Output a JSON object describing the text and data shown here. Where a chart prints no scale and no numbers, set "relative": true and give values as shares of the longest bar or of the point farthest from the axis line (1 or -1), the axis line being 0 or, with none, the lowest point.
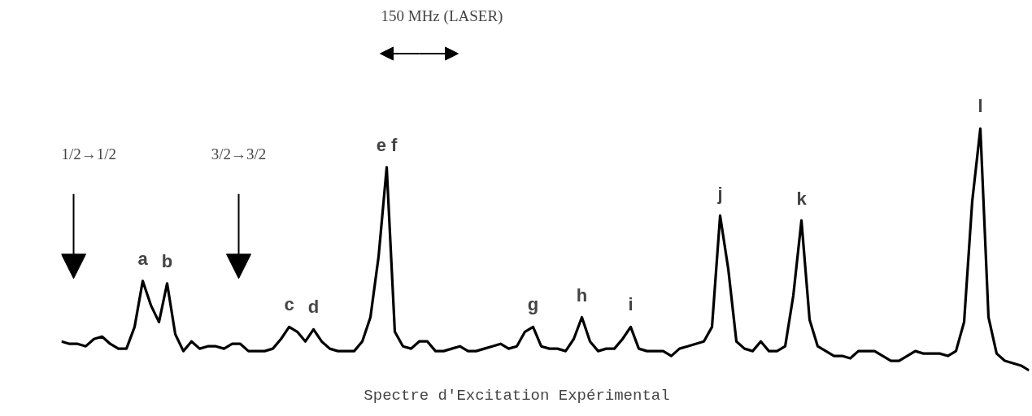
{
  "chart_data": {
    "type": "line",
    "relative": true,
    "xlabel": "Spectre d'Excitation Expérimental",
    "annotations": [
      "150 MHz (LASER)",
      "1/2→1/2",
      "3/2→3/2",
      "a",
      "b",
      "c",
      "d",
      "e f",
      "g",
      "h",
      "i",
      "j",
      "k",
      "l"
    ],
    "categories": [
      null,
      null,
      null,
      null,
      null,
      null,
      null,
      null,
      null,
      null,
      null,
      null,
      null,
      null,
      null,
      null,
      null,
      null,
      null,
      null,
      null,
      null,
      null,
      null,
      null,
      null,
      null,
      null,
      null,
      null,
      null,
      null,
      null,
      null,
      null,
      null,
      null,
      null,
      null,
      null,
      null,
      null,
      null,
      null,
      null,
      null,
      null,
      null,
      null,
      null,
      null,
      null,
      null,
      null,
      null,
      null,
      null,
      null,
      null,
      null,
      null,
      null,
      null,
      null,
      null,
      null,
      null,
      null,
      null,
      null,
      null,
      null,
      null,
      null,
      null,
      null,
      null,
      null,
      null,
      null,
      null,
      null,
      null,
      null,
      null,
      null,
      null,
      null,
      null,
      null,
      null,
      null,
      null,
      null,
      null,
      null,
      null,
      null,
      null,
      null,
      null,
      null,
      null,
      null,
      null,
      null,
      null,
      null,
      null,
      null,
      null,
      null,
      null,
      null,
      null,
      null,
      null,
      null,
      null,
      null
    ],
    "series": [
      {
        "color": "#000000",
        "values": [
          0.12,
          0.11,
          0.11,
          0.1,
          0.13,
          0.14,
          0.11,
          0.09,
          0.09,
          0.18,
          0.37,
          0.27,
          0.2,
          0.36,
          0.15,
          0.08,
          0.12,
          0.09,
          0.1,
          0.1,
          0.09,
          0.11,
          0.11,
          0.08,
          0.08,
          0.08,
          0.09,
          0.13,
          0.18,
          0.16,
          0.12,
          0.17,
          0.12,
          0.09,
          0.08,
          0.08,
          0.08,
          0.12,
          0.22,
          0.47,
          0.84,
          0.16,
          0.1,
          0.09,
          0.12,
          0.12,
          0.08,
          0.08,
          0.09,
          0.1,
          0.08,
          0.08,
          0.09,
          0.1,
          0.11,
          0.09,
          0.1,
          0.16,
          0.18,
          0.1,
          0.09,
          0.09,
          0.08,
          0.13,
          0.22,
          0.12,
          0.08,
          0.09,
          0.09,
          0.13,
          0.18,
          0.09,
          0.08,
          0.08,
          0.08,
          0.06,
          0.09,
          0.1,
          0.11,
          0.12,
          0.18,
          0.64,
          0.42,
          0.12,
          0.09,
          0.08,
          0.12,
          0.08,
          0.08,
          0.1,
          0.31,
          0.62,
          0.21,
          0.1,
          0.08,
          0.06,
          0.06,
          0.05,
          0.08,
          0.08,
          0.08,
          0.06,
          0.04,
          0.04,
          0.06,
          0.08,
          0.07,
          0.07,
          0.07,
          0.06,
          0.08,
          0.2,
          0.7,
          1,
          0.22,
          0.07,
          0.04,
          0.03,
          0.02,
          0
        ]
      }
    ]
  }
}
